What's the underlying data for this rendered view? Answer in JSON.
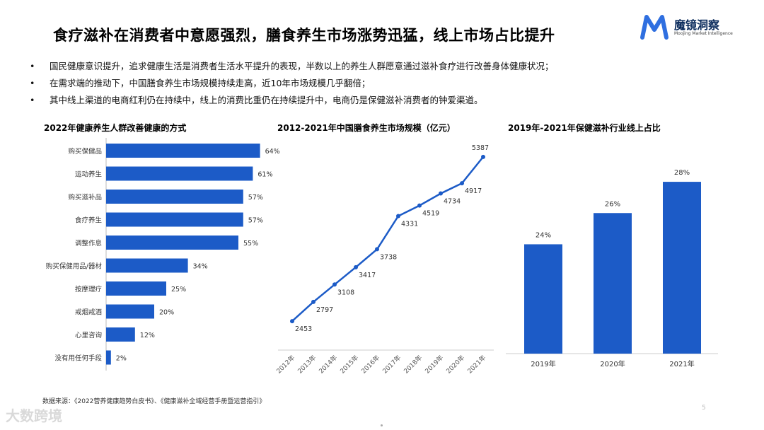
{
  "title": "食疗滋补在消费者中意愿强烈，膳食养生市场涨势迅猛，线上市场占比提升",
  "logo": {
    "name": "魔镜洞察",
    "sub": "Moojing Market Intelligence",
    "color": "#2f6fe0"
  },
  "bullets": [
    "国民健康意识提升，追求健康生活是消费者生活水平提升的表现，半数以上的养生人群愿意通过滋补食疗进行改善身体健康状况；",
    "在需求端的推动下，中国膳食养生市场规模持续走高，近10年市场规模几乎翻倍；",
    "其中线上渠道的电商红利仍在持续中，线上的消费比重仍在持续提升中，电商仍是保健滋补消费者的钟爱渠道。"
  ],
  "bullet_marker": "•",
  "source": "数据来源：《2022营养健康趋势白皮书》、《健康滋补全域经营手册暨运营指引》",
  "watermark": "大数跨境",
  "page_number": "5",
  "colors": {
    "bar": "#1c5bc7",
    "line": "#1c5bc7"
  },
  "chart_data": [
    {
      "type": "bar",
      "orientation": "horizontal",
      "title": "2022年健康养生人群改善健康的方式",
      "categories": [
        "购买保健品",
        "运动养生",
        "购买滋补品",
        "食疗养生",
        "调整作息",
        "购买保健用品/器材",
        "按摩理疗",
        "戒烟戒酒",
        "心里咨询",
        "没有用任何手段"
      ],
      "values": [
        64,
        61,
        57,
        57,
        55,
        34,
        25,
        20,
        12,
        2
      ],
      "value_suffix": "%",
      "xlim": [
        0,
        100
      ]
    },
    {
      "type": "line",
      "title": "2012-2021年中国膳食养生市场规模（亿元）",
      "categories": [
        "2012年",
        "2013年",
        "2014年",
        "2015年",
        "2016年",
        "2017年",
        "2018年",
        "2019年",
        "2020年",
        "2021年"
      ],
      "values": [
        2453,
        2797,
        3108,
        3417,
        3738,
        4331,
        4519,
        4734,
        4917,
        5387
      ],
      "ylim": [
        2000,
        5600
      ]
    },
    {
      "type": "bar",
      "title": "2019年-2021年保健滋补行业线上占比",
      "categories": [
        "2019年",
        "2020年",
        "2021年"
      ],
      "values": [
        24,
        26,
        28
      ],
      "value_suffix": "%",
      "ylim": [
        17,
        29
      ]
    }
  ]
}
